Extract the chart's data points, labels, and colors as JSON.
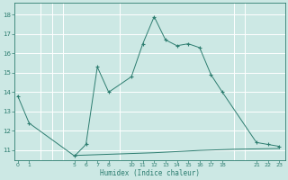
{
  "xlabel": "Humidex (Indice chaleur)",
  "bg_color": "#cce8e4",
  "grid_color": "#ffffff",
  "line_color": "#2d7d70",
  "main_x": [
    0,
    1,
    5,
    6,
    7,
    8,
    10,
    11,
    12,
    13,
    14,
    15,
    16,
    17,
    18,
    21,
    22,
    23
  ],
  "main_y": [
    13.8,
    12.4,
    10.7,
    11.3,
    15.3,
    14.0,
    14.8,
    16.5,
    17.9,
    16.7,
    16.4,
    16.5,
    16.3,
    14.9,
    14.0,
    11.4,
    11.3,
    11.2
  ],
  "flat_x": [
    5,
    6,
    7,
    8,
    9,
    10,
    11,
    12,
    13,
    14,
    15,
    16,
    17,
    18,
    19,
    20,
    21,
    22,
    23
  ],
  "flat_y": [
    10.73,
    10.75,
    10.77,
    10.79,
    10.81,
    10.83,
    10.85,
    10.87,
    10.9,
    10.93,
    10.96,
    10.99,
    11.01,
    11.03,
    11.05,
    11.06,
    11.07,
    11.08,
    11.09
  ],
  "xtick_positions": [
    0,
    1,
    5,
    6,
    7,
    8,
    10,
    11,
    12,
    13,
    14,
    15,
    16,
    17,
    18,
    21,
    22,
    23
  ],
  "xtick_labels": [
    "0",
    "1",
    "5",
    "6",
    "7",
    "8",
    "10",
    "11",
    "12",
    "13",
    "14",
    "15",
    "16",
    "17",
    "18",
    "21",
    "22",
    "23"
  ],
  "ytick_positions": [
    11,
    12,
    13,
    14,
    15,
    16,
    17,
    18
  ],
  "ytick_labels": [
    "11",
    "12",
    "13",
    "14",
    "15",
    "16",
    "17",
    "18"
  ],
  "grid_xticks": [
    0,
    1,
    2,
    3,
    4,
    5,
    6,
    7,
    8,
    9,
    10,
    11,
    12,
    13,
    14,
    15,
    16,
    17,
    18,
    19,
    20,
    21,
    22,
    23
  ],
  "xlim": [
    -0.3,
    23.5
  ],
  "ylim": [
    10.5,
    18.6
  ]
}
